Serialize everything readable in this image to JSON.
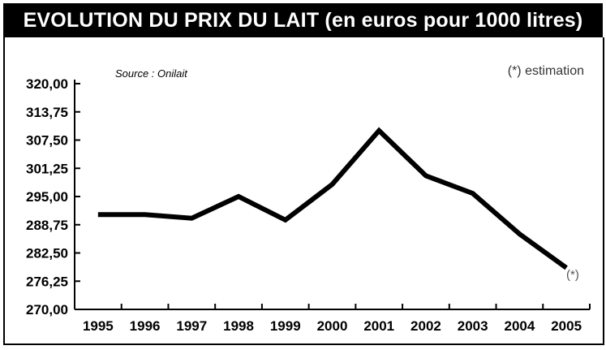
{
  "chart_data": {
    "type": "line",
    "title": "EVOLUTION DU PRIX DU LAIT (en euros pour 1000 litres)",
    "source": "Source : Onilait",
    "note": "(*) estimation",
    "point_note": "(*)",
    "x": [
      "1995",
      "1996",
      "1997",
      "1998",
      "1999",
      "2000",
      "2001",
      "2002",
      "2003",
      "2004",
      "2005"
    ],
    "values": [
      291.0,
      291.0,
      290.2,
      295.0,
      289.8,
      297.7,
      309.6,
      299.6,
      295.7,
      286.7,
      279.2
    ],
    "yticks": [
      "320,00",
      "313,75",
      "307,50",
      "301,25",
      "295,00",
      "288,75",
      "282,50",
      "276,25",
      "270,00"
    ],
    "ylim": [
      270,
      320
    ],
    "line_color": "#000000"
  }
}
